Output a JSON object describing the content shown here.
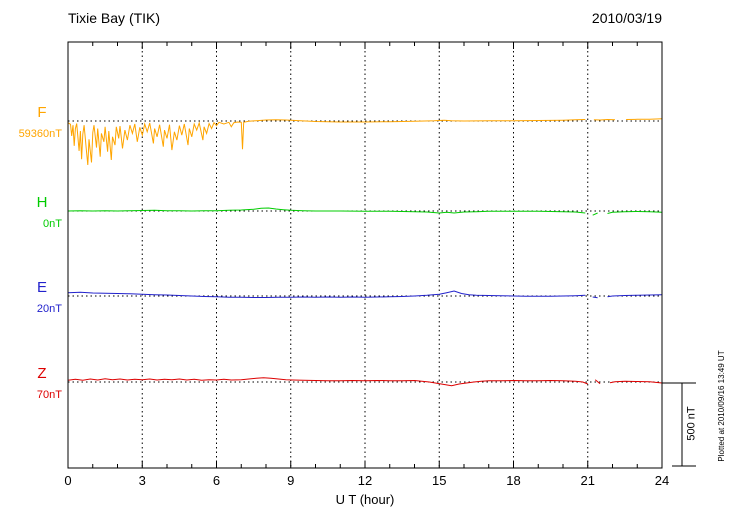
{
  "chart_data": {
    "type": "line",
    "title": "Tixie Bay (TIK)",
    "date": "2010/03/19",
    "xlabel": "U T (hour)",
    "xlim": [
      0,
      24
    ],
    "x_ticks": [
      0,
      3,
      6,
      9,
      12,
      15,
      18,
      21,
      24
    ],
    "grid": "dotted vertical gridlines every 3 hours, dotted horizontal baseline per trace",
    "scale_bar": {
      "label": "500 nT",
      "nT": 500
    },
    "plotted_at": "Plotted at 2010/09/16 13:49 UT",
    "series": [
      {
        "name": "F",
        "baseline_label": "59360nT",
        "color": "#FFA500",
        "points": [
          [
            0,
            -10
          ],
          [
            0.1,
            -20
          ],
          [
            0.15,
            -90
          ],
          [
            0.2,
            -25
          ],
          [
            0.25,
            -150
          ],
          [
            0.3,
            -45
          ],
          [
            0.35,
            -15
          ],
          [
            0.45,
            -180
          ],
          [
            0.5,
            -60
          ],
          [
            0.55,
            -230
          ],
          [
            0.6,
            -80
          ],
          [
            0.65,
            -25
          ],
          [
            0.75,
            -190
          ],
          [
            0.8,
            -265
          ],
          [
            0.85,
            -110
          ],
          [
            0.95,
            -250
          ],
          [
            1.0,
            -70
          ],
          [
            1.05,
            -25
          ],
          [
            1.15,
            -160
          ],
          [
            1.2,
            -45
          ],
          [
            1.3,
            -215
          ],
          [
            1.35,
            -75
          ],
          [
            1.45,
            -125
          ],
          [
            1.5,
            -35
          ],
          [
            1.6,
            -185
          ],
          [
            1.65,
            -60
          ],
          [
            1.75,
            -235
          ],
          [
            1.8,
            -95
          ],
          [
            1.9,
            -145
          ],
          [
            1.95,
            -35
          ],
          [
            2.05,
            -105
          ],
          [
            2.1,
            -30
          ],
          [
            2.2,
            -165
          ],
          [
            2.3,
            -55
          ],
          [
            2.4,
            -115
          ],
          [
            2.5,
            -25
          ],
          [
            2.6,
            -75
          ],
          [
            2.7,
            -18
          ],
          [
            2.8,
            -125
          ],
          [
            2.9,
            -38
          ],
          [
            3.0,
            -85
          ],
          [
            3.1,
            -18
          ],
          [
            3.2,
            -65
          ],
          [
            3.3,
            -12
          ],
          [
            3.45,
            -135
          ],
          [
            3.5,
            -45
          ],
          [
            3.6,
            -95
          ],
          [
            3.7,
            -22
          ],
          [
            3.85,
            -155
          ],
          [
            3.9,
            -55
          ],
          [
            4.0,
            -105
          ],
          [
            4.1,
            -22
          ],
          [
            4.2,
            -175
          ],
          [
            4.3,
            -65
          ],
          [
            4.4,
            -115
          ],
          [
            4.5,
            -28
          ],
          [
            4.6,
            -85
          ],
          [
            4.7,
            -18
          ],
          [
            4.85,
            -145
          ],
          [
            4.9,
            -45
          ],
          [
            5.0,
            -95
          ],
          [
            5.1,
            -18
          ],
          [
            5.2,
            -55
          ],
          [
            5.3,
            -12
          ],
          [
            5.45,
            -115
          ],
          [
            5.5,
            -35
          ],
          [
            5.6,
            -75
          ],
          [
            5.7,
            -15
          ],
          [
            5.8,
            -45
          ],
          [
            5.9,
            -10
          ],
          [
            6.0,
            -28
          ],
          [
            6.1,
            -8
          ],
          [
            6.3,
            -18
          ],
          [
            6.5,
            -8
          ],
          [
            6.6,
            -35
          ],
          [
            6.7,
            -10
          ],
          [
            6.85,
            -6
          ],
          [
            7.0,
            -8
          ],
          [
            7.05,
            -170
          ],
          [
            7.1,
            -8
          ],
          [
            7.3,
            -2
          ],
          [
            7.6,
            2
          ],
          [
            8,
            6
          ],
          [
            8.4,
            8
          ],
          [
            8.8,
            6
          ],
          [
            9.2,
            3
          ],
          [
            9.6,
            0
          ],
          [
            10,
            -3
          ],
          [
            11,
            -6
          ],
          [
            12,
            -6
          ],
          [
            13,
            -4
          ],
          [
            14,
            -2
          ],
          [
            14.8,
            1
          ],
          [
            15.2,
            4
          ],
          [
            15.5,
            2
          ],
          [
            16,
            0
          ],
          [
            17,
            1
          ],
          [
            18,
            2
          ],
          [
            19,
            3
          ],
          [
            20,
            5
          ],
          [
            20.5,
            7
          ],
          [
            20.9,
            9
          ],
          [
            21.05,
            null
          ],
          [
            21.25,
            8
          ],
          [
            21.5,
            6
          ],
          [
            21.8,
            9
          ],
          [
            22.1,
            8
          ],
          [
            22.35,
            null
          ],
          [
            22.55,
            9
          ],
          [
            23,
            10
          ],
          [
            23.5,
            11
          ],
          [
            24,
            13
          ]
        ]
      },
      {
        "name": "H",
        "baseline_label": "0nT",
        "color": "#00CC00",
        "points": [
          [
            0,
            0
          ],
          [
            0.5,
            2
          ],
          [
            1,
            0
          ],
          [
            1.5,
            2
          ],
          [
            2,
            0
          ],
          [
            2.5,
            2
          ],
          [
            3,
            3
          ],
          [
            3.5,
            4
          ],
          [
            4,
            2
          ],
          [
            4.5,
            2
          ],
          [
            5,
            0
          ],
          [
            5.5,
            2
          ],
          [
            6,
            2
          ],
          [
            6.5,
            4
          ],
          [
            7,
            6
          ],
          [
            7.5,
            10
          ],
          [
            7.8,
            16
          ],
          [
            8.1,
            18
          ],
          [
            8.4,
            12
          ],
          [
            8.7,
            8
          ],
          [
            9,
            4
          ],
          [
            9.5,
            2
          ],
          [
            10,
            0
          ],
          [
            11,
            0
          ],
          [
            12,
            -2
          ],
          [
            13,
            -2
          ],
          [
            14,
            -4
          ],
          [
            14.5,
            -6
          ],
          [
            15,
            -12
          ],
          [
            15.3,
            -8
          ],
          [
            15.6,
            -12
          ],
          [
            16,
            -6
          ],
          [
            16.5,
            -4
          ],
          [
            17,
            -2
          ],
          [
            18,
            -2
          ],
          [
            19,
            -2
          ],
          [
            20,
            -4
          ],
          [
            20.5,
            -6
          ],
          [
            20.9,
            -12
          ],
          [
            21.05,
            null
          ],
          [
            21.2,
            -25
          ],
          [
            21.4,
            -12
          ],
          [
            21.55,
            null
          ],
          [
            21.8,
            -15
          ],
          [
            22,
            -8
          ],
          [
            22.5,
            -5
          ],
          [
            23,
            -3
          ],
          [
            23.5,
            -4
          ],
          [
            24,
            -8
          ]
        ]
      },
      {
        "name": "E",
        "baseline_label": "20nT",
        "color": "#2222CC",
        "points": [
          [
            0,
            20
          ],
          [
            0.5,
            22
          ],
          [
            1,
            18
          ],
          [
            1.5,
            16
          ],
          [
            2,
            15
          ],
          [
            2.5,
            13
          ],
          [
            3,
            10
          ],
          [
            3.5,
            8
          ],
          [
            4,
            6
          ],
          [
            4.5,
            3
          ],
          [
            5,
            0
          ],
          [
            5.5,
            -3
          ],
          [
            6,
            -5
          ],
          [
            6.5,
            -7
          ],
          [
            7,
            -8
          ],
          [
            7.5,
            -9
          ],
          [
            8,
            -9
          ],
          [
            8.5,
            -8
          ],
          [
            9,
            -7
          ],
          [
            9.5,
            -6
          ],
          [
            10,
            -7
          ],
          [
            10.5,
            -6
          ],
          [
            11,
            -7
          ],
          [
            11.5,
            -6
          ],
          [
            12,
            -7
          ],
          [
            12.5,
            -6
          ],
          [
            13,
            -5
          ],
          [
            13.5,
            -3
          ],
          [
            14,
            0
          ],
          [
            14.5,
            4
          ],
          [
            15,
            10
          ],
          [
            15.3,
            20
          ],
          [
            15.6,
            30
          ],
          [
            15.9,
            15
          ],
          [
            16.2,
            8
          ],
          [
            16.5,
            5
          ],
          [
            17,
            3
          ],
          [
            17.5,
            1
          ],
          [
            18,
            0
          ],
          [
            18.5,
            -2
          ],
          [
            19,
            -2
          ],
          [
            19.5,
            -1
          ],
          [
            20,
            0
          ],
          [
            20.5,
            2
          ],
          [
            20.9,
            4
          ],
          [
            21.05,
            null
          ],
          [
            21.2,
            -6
          ],
          [
            21.4,
            -10
          ],
          [
            21.55,
            null
          ],
          [
            21.8,
            -5
          ],
          [
            22,
            0
          ],
          [
            22.5,
            3
          ],
          [
            23,
            5
          ],
          [
            23.5,
            6
          ],
          [
            24,
            8
          ]
        ]
      },
      {
        "name": "Z",
        "baseline_label": "70nT",
        "color": "#DD0000",
        "points": [
          [
            0,
            10
          ],
          [
            0.3,
            16
          ],
          [
            0.6,
            10
          ],
          [
            0.9,
            18
          ],
          [
            1.2,
            12
          ],
          [
            1.5,
            20
          ],
          [
            1.8,
            13
          ],
          [
            2.1,
            18
          ],
          [
            2.4,
            12
          ],
          [
            2.7,
            16
          ],
          [
            3,
            13
          ],
          [
            3.3,
            18
          ],
          [
            3.6,
            12
          ],
          [
            3.9,
            16
          ],
          [
            4.2,
            13
          ],
          [
            4.5,
            18
          ],
          [
            4.8,
            12
          ],
          [
            5.1,
            16
          ],
          [
            5.4,
            10
          ],
          [
            5.7,
            14
          ],
          [
            6,
            12
          ],
          [
            6.3,
            16
          ],
          [
            6.6,
            12
          ],
          [
            7,
            14
          ],
          [
            7.3,
            18
          ],
          [
            7.6,
            22
          ],
          [
            7.9,
            26
          ],
          [
            8.2,
            22
          ],
          [
            8.5,
            18
          ],
          [
            8.8,
            14
          ],
          [
            9.1,
            12
          ],
          [
            9.5,
            10
          ],
          [
            10,
            9
          ],
          [
            10.5,
            8
          ],
          [
            11,
            8
          ],
          [
            11.5,
            9
          ],
          [
            12,
            8
          ],
          [
            12.5,
            9
          ],
          [
            13,
            8
          ],
          [
            13.5,
            8
          ],
          [
            14,
            9
          ],
          [
            14.3,
            5
          ],
          [
            14.6,
            0
          ],
          [
            14.9,
            -8
          ],
          [
            15.2,
            -15
          ],
          [
            15.5,
            -22
          ],
          [
            15.8,
            -12
          ],
          [
            16.1,
            -6
          ],
          [
            16.4,
            0
          ],
          [
            16.7,
            5
          ],
          [
            17,
            7
          ],
          [
            17.5,
            8
          ],
          [
            18,
            9
          ],
          [
            18.5,
            8
          ],
          [
            19,
            8
          ],
          [
            19.5,
            9
          ],
          [
            20,
            8
          ],
          [
            20.5,
            5
          ],
          [
            20.8,
            0
          ],
          [
            21.0,
            -12
          ],
          [
            21.1,
            null
          ],
          [
            21.3,
            14
          ],
          [
            21.5,
            -10
          ],
          [
            21.7,
            null
          ],
          [
            21.9,
            -5
          ],
          [
            22.1,
            2
          ],
          [
            22.5,
            5
          ],
          [
            23,
            3
          ],
          [
            23.5,
            1
          ],
          [
            24,
            -6
          ]
        ]
      }
    ]
  }
}
